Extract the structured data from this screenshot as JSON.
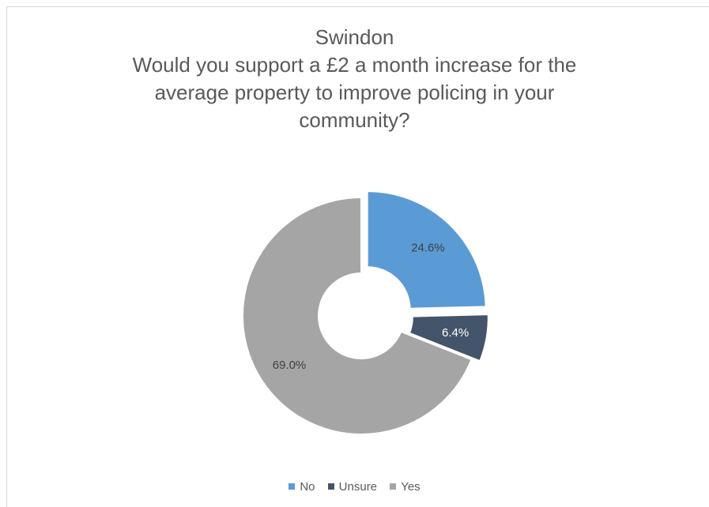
{
  "chart_data": {
    "type": "pie",
    "variant": "donut",
    "title_lines": [
      "Swindon",
      "Would you support a £2 a month increase for the",
      "average property to improve policing in your",
      "community?"
    ],
    "categories": [
      "No",
      "Unsure",
      "Yes"
    ],
    "values": [
      24.6,
      6.4,
      69.0
    ],
    "data_labels": [
      "24.6%",
      "6.4%",
      "69.0%"
    ],
    "colors": [
      "#5b9bd5",
      "#44546a",
      "#a5a5a5"
    ],
    "exploded": [
      true,
      true,
      false
    ],
    "legend_position": "bottom",
    "grid": false
  }
}
